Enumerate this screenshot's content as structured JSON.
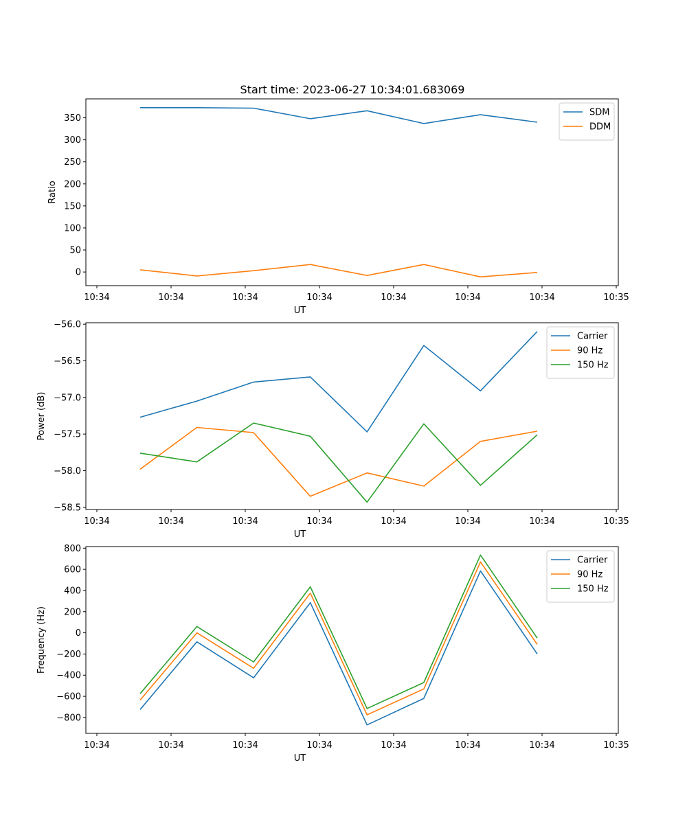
{
  "chart_data": [
    {
      "type": "line",
      "title": "Start time: 2023-06-27 10:34:01.683069",
      "xlabel": "UT",
      "ylabel": "Ratio",
      "xtick_labels": [
        "10:34",
        "10:34",
        "10:34",
        "10:34",
        "10:34",
        "10:34",
        "10:34",
        "10:35"
      ],
      "x": [
        1,
        2,
        3,
        4,
        5,
        6,
        7,
        8
      ],
      "xlim": [
        0.2,
        9.2
      ],
      "ylim": [
        -31,
        393
      ],
      "yticks": [
        0,
        50,
        100,
        150,
        200,
        250,
        300,
        350
      ],
      "legend": "top-right",
      "series": [
        {
          "name": "SDM",
          "color": "#1f77b4",
          "values": [
            373,
            373,
            372,
            348,
            366,
            337,
            357,
            340
          ]
        },
        {
          "name": "DDM",
          "color": "#ff7f0e",
          "values": [
            5,
            -9,
            3,
            17,
            -8,
            17,
            -11,
            -1
          ]
        }
      ]
    },
    {
      "type": "line",
      "title": "",
      "xlabel": "UT",
      "ylabel": "Power (dB)",
      "xtick_labels": [
        "10:34",
        "10:34",
        "10:34",
        "10:34",
        "10:34",
        "10:34",
        "10:34",
        "10:35"
      ],
      "x": [
        1,
        2,
        3,
        4,
        5,
        6,
        7,
        8
      ],
      "xlim": [
        0.2,
        9.2
      ],
      "ylim": [
        -58.53,
        -55.98
      ],
      "yticks": [
        -58.5,
        -58.0,
        -57.5,
        -57.0,
        -56.5,
        -56.0
      ],
      "ytick_labels": [
        "−58.5",
        "−58.0",
        "−57.5",
        "−57.0",
        "−56.5",
        "−56.0"
      ],
      "legend": "top-right",
      "series": [
        {
          "name": "Carrier",
          "color": "#1f77b4",
          "values": [
            -57.27,
            -57.05,
            -56.79,
            -56.72,
            -57.47,
            -56.29,
            -56.91,
            -56.1
          ]
        },
        {
          "name": "90 Hz",
          "color": "#ff7f0e",
          "values": [
            -57.98,
            -57.41,
            -57.48,
            -58.35,
            -58.03,
            -58.21,
            -57.6,
            -57.46
          ]
        },
        {
          "name": "150 Hz",
          "color": "#2ca02c",
          "values": [
            -57.76,
            -57.88,
            -57.35,
            -57.53,
            -58.43,
            -57.36,
            -58.2,
            -57.51
          ]
        }
      ]
    },
    {
      "type": "line",
      "title": "",
      "xlabel": "UT",
      "ylabel": "Frequency (Hz)",
      "xtick_labels": [
        "10:34",
        "10:34",
        "10:34",
        "10:34",
        "10:34",
        "10:34",
        "10:34",
        "10:35"
      ],
      "x": [
        1,
        2,
        3,
        4,
        5,
        6,
        7,
        8
      ],
      "xlim": [
        0.2,
        9.2
      ],
      "ylim": [
        -950,
        815
      ],
      "yticks": [
        -800,
        -600,
        -400,
        -200,
        0,
        200,
        400,
        600,
        800
      ],
      "ytick_labels": [
        "−800",
        "−600",
        "−400",
        "−200",
        "0",
        "200",
        "400",
        "600",
        "800"
      ],
      "legend": "top-right",
      "series": [
        {
          "name": "Carrier",
          "color": "#1f77b4",
          "values": [
            -725,
            -85,
            -425,
            285,
            -870,
            -620,
            585,
            -200
          ]
        },
        {
          "name": "90 Hz",
          "color": "#ff7f0e",
          "values": [
            -635,
            0,
            -335,
            375,
            -775,
            -530,
            670,
            -110
          ]
        },
        {
          "name": "150 Hz",
          "color": "#2ca02c",
          "values": [
            -575,
            60,
            -275,
            435,
            -715,
            -470,
            735,
            -50
          ]
        }
      ]
    }
  ]
}
